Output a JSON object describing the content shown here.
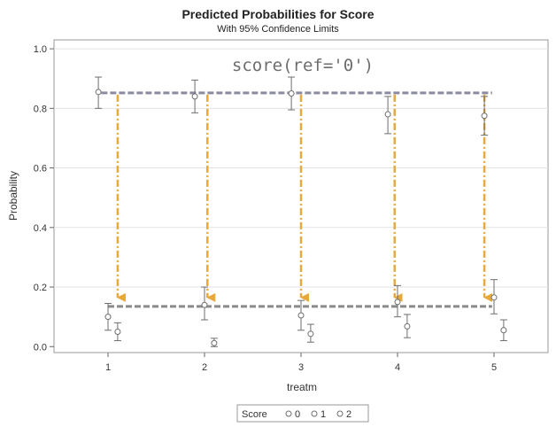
{
  "chart_data": {
    "type": "scatter",
    "title": "Predicted Probabilities for Score",
    "subtitle": "With 95% Confidence Limits",
    "xlabel": "treatm",
    "ylabel": "Probability",
    "annotation": "score(ref='0')",
    "categories": [
      "1",
      "2",
      "3",
      "4",
      "5"
    ],
    "ylim": [
      -0.02,
      1.03
    ],
    "yticks": [
      "0.0",
      "0.2",
      "0.4",
      "0.6",
      "0.8",
      "1.0"
    ],
    "grid": true,
    "series": [
      {
        "name": "0",
        "x": [
          1,
          2,
          3,
          4,
          5
        ],
        "offset": -0.1,
        "values": [
          0.855,
          0.84,
          0.85,
          0.78,
          0.775
        ],
        "lower": [
          0.8,
          0.785,
          0.795,
          0.715,
          0.71
        ],
        "upper": [
          0.905,
          0.895,
          0.905,
          0.84,
          0.84
        ]
      },
      {
        "name": "1",
        "x": [
          1,
          2,
          3,
          4,
          5
        ],
        "offset": 0.0,
        "values": [
          0.1,
          0.14,
          0.105,
          0.15,
          0.165
        ],
        "lower": [
          0.055,
          0.09,
          0.055,
          0.1,
          0.11
        ],
        "upper": [
          0.145,
          0.2,
          0.155,
          0.205,
          0.225
        ]
      },
      {
        "name": "2",
        "x": [
          1,
          2,
          3,
          4,
          5
        ],
        "offset": 0.1,
        "values": [
          0.05,
          0.012,
          0.043,
          0.068,
          0.055
        ],
        "lower": [
          0.02,
          0.0,
          0.015,
          0.03,
          0.02
        ],
        "upper": [
          0.08,
          0.028,
          0.075,
          0.108,
          0.09
        ]
      }
    ],
    "reference_lines": [
      {
        "y": 0.852,
        "x_from": 0.93,
        "x_to": 4.98,
        "style": "dashed",
        "color": "#8a8aa0"
      },
      {
        "y": 0.135,
        "x_from": 1.0,
        "x_to": 4.98,
        "style": "dashed",
        "color": "#8a8a8a"
      }
    ],
    "arrows": {
      "color": "#e8a83a",
      "x": [
        1.1,
        2.03,
        3.0,
        3.97,
        4.9
      ],
      "from": 0.852,
      "to": 0.135
    },
    "legend": {
      "title": "Score",
      "placement": "bottom",
      "entries": [
        "0",
        "1",
        "2"
      ]
    },
    "colors": {
      "marker": "#6e6e6e",
      "grid": "#e3e3e3",
      "frame": "#999999"
    }
  }
}
